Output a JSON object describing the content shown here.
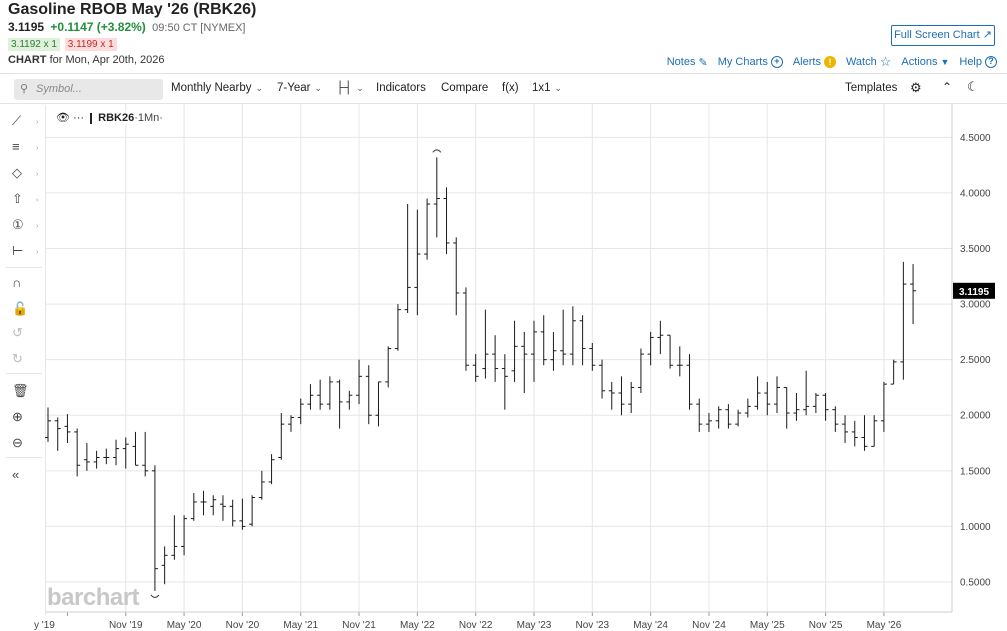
{
  "header": {
    "title": "Gasoline RBOB May '26 (RBK26)",
    "last": "3.1195",
    "change": "+0.1147 (+3.82%)",
    "time": "09:50 CT [NYMEX]",
    "bid": "3.1192 x 1",
    "ask": "3.1199 x 1",
    "chart_label": "CHART",
    "chart_date": "for Mon, Apr 20th, 2026",
    "fullscreen": "Full Screen Chart"
  },
  "links": {
    "notes": "Notes",
    "mycharts": "My Charts",
    "alerts": "Alerts",
    "watch": "Watch",
    "actions": "Actions",
    "help": "Help"
  },
  "toolbar": {
    "symbol_placeholder": "Symbol...",
    "nearby": "Monthly Nearby",
    "range": "7-Year",
    "indicators": "Indicators",
    "compare": "Compare",
    "fx": "f(x)",
    "layout": "1x1",
    "templates": "Templates"
  },
  "legend": {
    "symbol": "RBK26",
    "interval": "·1Mn·"
  },
  "watermark": "barchart",
  "colors": {
    "bar": "#1a1a1a",
    "grid": "#e6e6e6",
    "accent": "#1c6fb5",
    "positive": "#1f8f3a",
    "negative": "#c62828",
    "last_price_bg": "#000000"
  },
  "chart_data": {
    "type": "ohlc",
    "title": "",
    "interval": "monthly",
    "x_start": "2019-03",
    "x_ticks": [
      "y '19",
      "Nov '19",
      "May '20",
      "Nov '20",
      "May '21",
      "Nov '21",
      "May '22",
      "Nov '22",
      "May '23",
      "Nov '23",
      "May '24",
      "Nov '24",
      "May '25",
      "Nov '25",
      "May '26"
    ],
    "y_ticks": [
      "4.5000",
      "4.0000",
      "3.5000",
      "3.0000",
      "2.5000",
      "2.0000",
      "1.5000",
      "1.0000",
      "0.5000"
    ],
    "ylim": [
      0.23,
      4.8
    ],
    "last_price": "3.1195",
    "grid": true,
    "high_low_markers": true,
    "series": [
      {
        "values": [
          [
            1.8,
            2.07,
            1.76,
            1.95
          ],
          [
            1.95,
            1.98,
            1.68,
            1.88
          ],
          [
            1.9,
            2.01,
            1.75,
            1.85
          ],
          [
            1.85,
            1.88,
            1.45,
            1.55
          ],
          [
            1.6,
            1.75,
            1.5,
            1.58
          ],
          [
            1.58,
            1.68,
            1.52,
            1.62
          ],
          [
            1.62,
            1.7,
            1.56,
            1.62
          ],
          [
            1.62,
            1.78,
            1.55,
            1.7
          ],
          [
            1.7,
            1.8,
            1.52,
            1.74
          ],
          [
            1.72,
            1.85,
            1.55,
            1.55
          ],
          [
            1.55,
            1.85,
            1.45,
            1.5
          ],
          [
            1.5,
            1.55,
            0.42,
            0.62
          ],
          [
            0.65,
            0.82,
            0.48,
            0.74
          ],
          [
            0.74,
            1.1,
            0.7,
            0.82
          ],
          [
            0.82,
            1.1,
            0.74,
            1.07
          ],
          [
            1.07,
            1.3,
            1.05,
            1.22
          ],
          [
            1.22,
            1.32,
            1.1,
            1.22
          ],
          [
            1.18,
            1.28,
            1.1,
            1.24
          ],
          [
            1.2,
            1.28,
            1.05,
            1.18
          ],
          [
            1.18,
            1.24,
            1.0,
            1.05
          ],
          [
            1.05,
            1.25,
            0.97,
            1.0
          ],
          [
            1.02,
            1.28,
            1.0,
            1.26
          ],
          [
            1.26,
            1.5,
            1.24,
            1.4
          ],
          [
            1.4,
            1.65,
            1.38,
            1.6
          ],
          [
            1.62,
            2.02,
            1.6,
            1.92
          ],
          [
            1.92,
            2.0,
            1.85,
            1.98
          ],
          [
            1.98,
            2.15,
            1.92,
            2.1
          ],
          [
            2.1,
            2.28,
            2.05,
            2.18
          ],
          [
            2.18,
            2.32,
            2.05,
            2.1
          ],
          [
            2.1,
            2.35,
            2.05,
            2.3
          ],
          [
            2.3,
            2.32,
            1.88,
            2.12
          ],
          [
            2.12,
            2.22,
            2.05,
            2.18
          ],
          [
            2.18,
            2.5,
            2.1,
            2.35
          ],
          [
            2.35,
            2.45,
            1.92,
            2.0
          ],
          [
            2.0,
            2.3,
            1.9,
            2.3
          ],
          [
            2.3,
            2.62,
            2.25,
            2.6
          ],
          [
            2.6,
            3.0,
            2.58,
            2.95
          ],
          [
            2.95,
            3.9,
            2.92,
            3.15
          ],
          [
            3.15,
            3.85,
            2.9,
            3.45
          ],
          [
            3.45,
            3.95,
            3.4,
            3.9
          ],
          [
            3.9,
            4.32,
            3.6,
            3.95
          ],
          [
            3.95,
            4.05,
            3.45,
            3.55
          ],
          [
            3.55,
            3.6,
            2.9,
            3.1
          ],
          [
            3.1,
            3.15,
            2.4,
            2.45
          ],
          [
            2.45,
            2.55,
            2.3,
            2.35
          ],
          [
            2.42,
            2.95,
            2.33,
            2.55
          ],
          [
            2.55,
            2.72,
            2.3,
            2.42
          ],
          [
            2.42,
            2.55,
            2.05,
            2.35
          ],
          [
            2.4,
            2.85,
            2.3,
            2.62
          ],
          [
            2.62,
            2.75,
            2.2,
            2.55
          ],
          [
            2.55,
            2.85,
            2.3,
            2.75
          ],
          [
            2.75,
            2.9,
            2.45,
            2.5
          ],
          [
            2.5,
            2.75,
            2.4,
            2.58
          ],
          [
            2.58,
            2.95,
            2.45,
            2.55
          ],
          [
            2.55,
            2.98,
            2.45,
            2.85
          ],
          [
            2.85,
            2.9,
            2.45,
            2.6
          ],
          [
            2.6,
            2.65,
            2.4,
            2.45
          ],
          [
            2.45,
            2.5,
            2.15,
            2.22
          ],
          [
            2.22,
            2.3,
            2.05,
            2.2
          ],
          [
            2.2,
            2.35,
            2.0,
            2.1
          ],
          [
            2.1,
            2.3,
            2.02,
            2.25
          ],
          [
            2.25,
            2.6,
            2.2,
            2.55
          ],
          [
            2.55,
            2.75,
            2.45,
            2.7
          ],
          [
            2.7,
            2.85,
            2.55,
            2.72
          ],
          [
            2.72,
            2.7,
            2.42,
            2.45
          ],
          [
            2.45,
            2.62,
            2.35,
            2.45
          ],
          [
            2.45,
            2.55,
            2.05,
            2.1
          ],
          [
            2.1,
            2.15,
            1.85,
            1.92
          ],
          [
            1.92,
            2.02,
            1.85,
            1.95
          ],
          [
            1.95,
            2.08,
            1.88,
            2.05
          ],
          [
            2.05,
            2.1,
            1.88,
            1.92
          ],
          [
            1.92,
            2.05,
            1.9,
            2.02
          ],
          [
            2.02,
            2.15,
            1.98,
            2.08
          ],
          [
            2.08,
            2.35,
            2.05,
            2.2
          ],
          [
            2.2,
            2.3,
            2.0,
            2.1
          ],
          [
            2.1,
            2.35,
            2.02,
            2.25
          ],
          [
            2.25,
            2.1,
            1.88,
            2.02
          ],
          [
            2.02,
            2.2,
            1.95,
            2.05
          ],
          [
            2.05,
            2.4,
            2.0,
            2.08
          ],
          [
            2.08,
            2.2,
            2.02,
            2.18
          ],
          [
            2.18,
            2.2,
            1.95,
            2.05
          ],
          [
            2.05,
            2.08,
            1.85,
            1.92
          ],
          [
            1.92,
            2.0,
            1.75,
            1.85
          ],
          [
            1.85,
            1.95,
            1.72,
            1.8
          ],
          [
            1.8,
            2.0,
            1.68,
            1.72
          ],
          [
            1.72,
            2.0,
            1.85,
            1.95
          ],
          [
            1.95,
            2.3,
            1.85,
            2.28
          ],
          [
            2.28,
            2.5,
            2.3,
            2.48
          ],
          [
            2.48,
            3.38,
            2.32,
            3.18
          ],
          [
            3.18,
            3.36,
            2.82,
            3.12
          ]
        ]
      }
    ]
  }
}
